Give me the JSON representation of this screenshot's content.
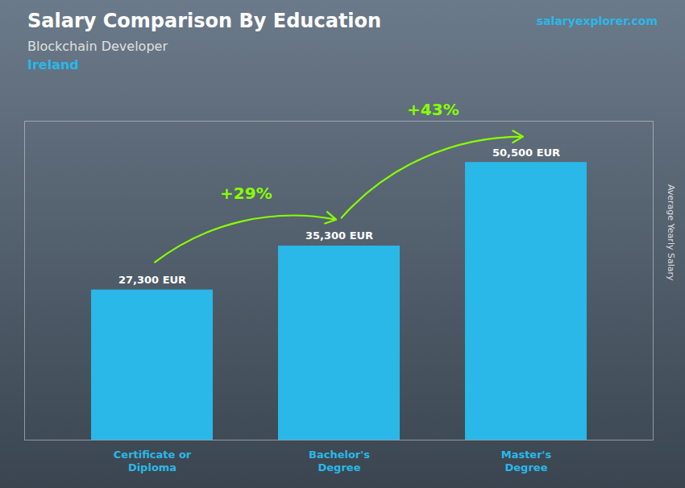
{
  "chart_data": {
    "type": "bar",
    "title": "Salary Comparison By Education",
    "subtitle": "Blockchain Developer",
    "country": "Ireland",
    "source": "salaryexplorer.com",
    "ylabel": "Average Yearly Salary",
    "categories": [
      "Certificate or\nDiploma",
      "Bachelor's\nDegree",
      "Master's\nDegree"
    ],
    "values": [
      27300,
      35300,
      50500
    ],
    "value_labels": [
      "27,300 EUR",
      "35,300 EUR",
      "50,500 EUR"
    ],
    "data_labels": true,
    "annotations": [
      {
        "text": "+29%",
        "color": "#88ff00"
      },
      {
        "text": "+43%",
        "color": "#88ff00"
      }
    ],
    "color": "#29b8e8",
    "ylim": [
      0,
      58000
    ],
    "tick_labels": "x"
  }
}
